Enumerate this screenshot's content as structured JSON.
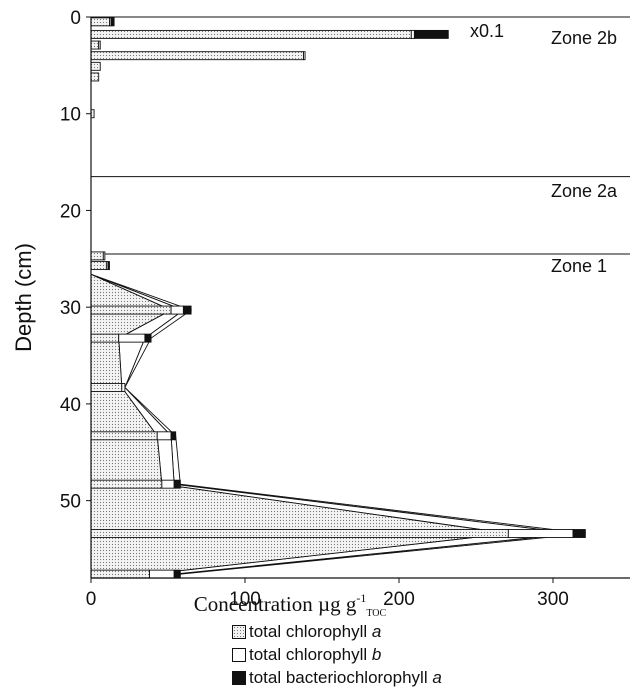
{
  "chart_data": {
    "type": "bar",
    "orientation": "horizontal",
    "stacked": true,
    "xlabel": "Concentration µg g",
    "xlabel_sup": "-1",
    "xlabel_sub": "TOC",
    "ylabel": "Depth (cm)",
    "xlim": [
      0,
      350
    ],
    "ylim": [
      0,
      58
    ],
    "x_ticks": [
      0,
      100,
      200,
      300
    ],
    "y_ticks": [
      0,
      10,
      20,
      30,
      40,
      50
    ],
    "annotation": "x0.1",
    "zones": [
      {
        "label": "Zone 2b"
      },
      {
        "label": "Zone 2a"
      },
      {
        "label": "Zone 1"
      }
    ],
    "zone_boundaries": [
      16.5,
      24.5
    ],
    "series": [
      {
        "name": "total chlorophyll a",
        "color": "#f2f2f2"
      },
      {
        "name": "total chlorophyll b",
        "color": "#ffffff"
      },
      {
        "name": "total bacteriochlorophyll a",
        "color": "#111111"
      }
    ],
    "bars": [
      {
        "depth": 0.5,
        "chl_a": 12,
        "chl_b": 1,
        "bchl_a": 2
      },
      {
        "depth": 1.8,
        "chl_a": 208,
        "chl_b": 2,
        "bchl_a": 22
      },
      {
        "depth": 2.9,
        "chl_a": 5,
        "chl_b": 1,
        "bchl_a": 0
      },
      {
        "depth": 4.0,
        "chl_a": 138,
        "chl_b": 1,
        "bchl_a": 0
      },
      {
        "depth": 5.1,
        "chl_a": 6,
        "chl_b": 0,
        "bchl_a": 0
      },
      {
        "depth": 6.2,
        "chl_a": 5,
        "chl_b": 0,
        "bchl_a": 0
      },
      {
        "depth": 10.0,
        "chl_a": 2,
        "chl_b": 0,
        "bchl_a": 0
      },
      {
        "depth": 24.7,
        "chl_a": 8,
        "chl_b": 1,
        "bchl_a": 0
      },
      {
        "depth": 25.7,
        "chl_a": 10,
        "chl_b": 1,
        "bchl_a": 1
      },
      {
        "depth": 30.3,
        "chl_a": 52,
        "chl_b": 8,
        "bchl_a": 5
      },
      {
        "depth": 33.2,
        "chl_a": 18,
        "chl_b": 17,
        "bchl_a": 4
      },
      {
        "depth": 38.3,
        "chl_a": 20,
        "chl_b": 2,
        "bchl_a": 0
      },
      {
        "depth": 43.3,
        "chl_a": 43,
        "chl_b": 9,
        "bchl_a": 3
      },
      {
        "depth": 48.3,
        "chl_a": 46,
        "chl_b": 8,
        "bchl_a": 4
      },
      {
        "depth": 53.4,
        "chl_a": 271,
        "chl_b": 42,
        "bchl_a": 8
      },
      {
        "depth": 57.6,
        "chl_a": 38,
        "chl_b": 16,
        "bchl_a": 4
      }
    ],
    "envelope_points": [
      {
        "depth": 26.6,
        "chl_a": 0,
        "total_b": 0,
        "total": 0
      },
      {
        "depth": 30.3,
        "chl_a": 52,
        "total_b": 60,
        "total": 65
      },
      {
        "depth": 33.2,
        "chl_a": 18,
        "total_b": 35,
        "total": 39
      },
      {
        "depth": 38.3,
        "chl_a": 20,
        "total_b": 22,
        "total": 22
      },
      {
        "depth": 43.3,
        "chl_a": 43,
        "total_b": 52,
        "total": 55
      },
      {
        "depth": 48.3,
        "chl_a": 46,
        "total_b": 54,
        "total": 58
      },
      {
        "depth": 53.4,
        "chl_a": 271,
        "total_b": 313,
        "total": 321
      },
      {
        "depth": 57.6,
        "chl_a": 38,
        "total_b": 54,
        "total": 58
      }
    ]
  }
}
